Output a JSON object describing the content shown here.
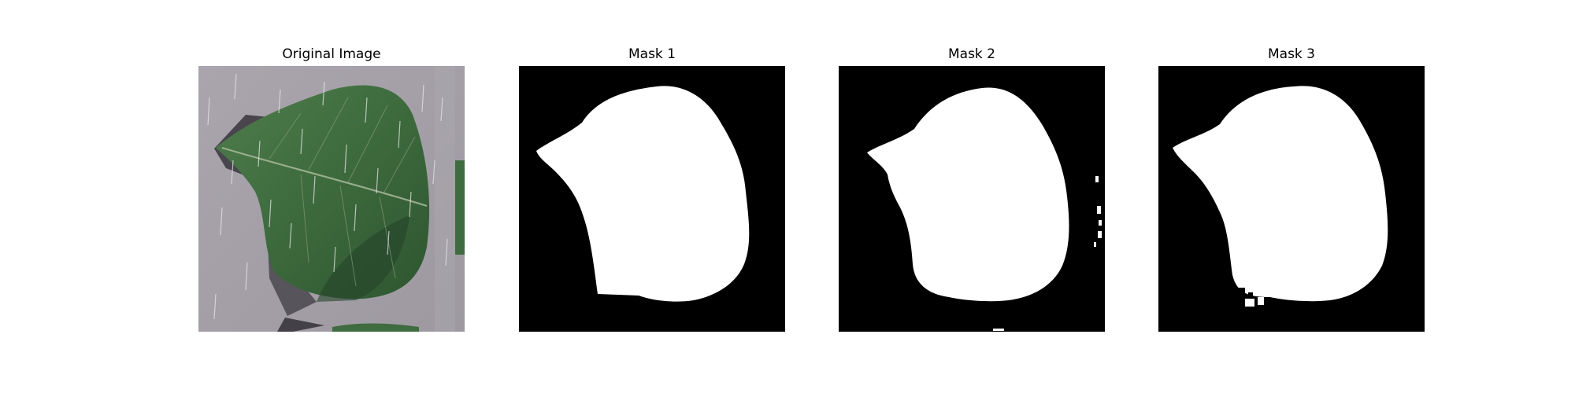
{
  "panels": [
    {
      "title": "Original Image",
      "kind": "photo"
    },
    {
      "title": "Mask 1",
      "kind": "mask"
    },
    {
      "title": "Mask 2",
      "kind": "mask"
    },
    {
      "title": "Mask 3",
      "kind": "mask"
    }
  ],
  "colors": {
    "mask_foreground": "#ffffff",
    "mask_background": "#000000",
    "leaf": "#3e6a3e",
    "paper": "#a49fa6"
  }
}
